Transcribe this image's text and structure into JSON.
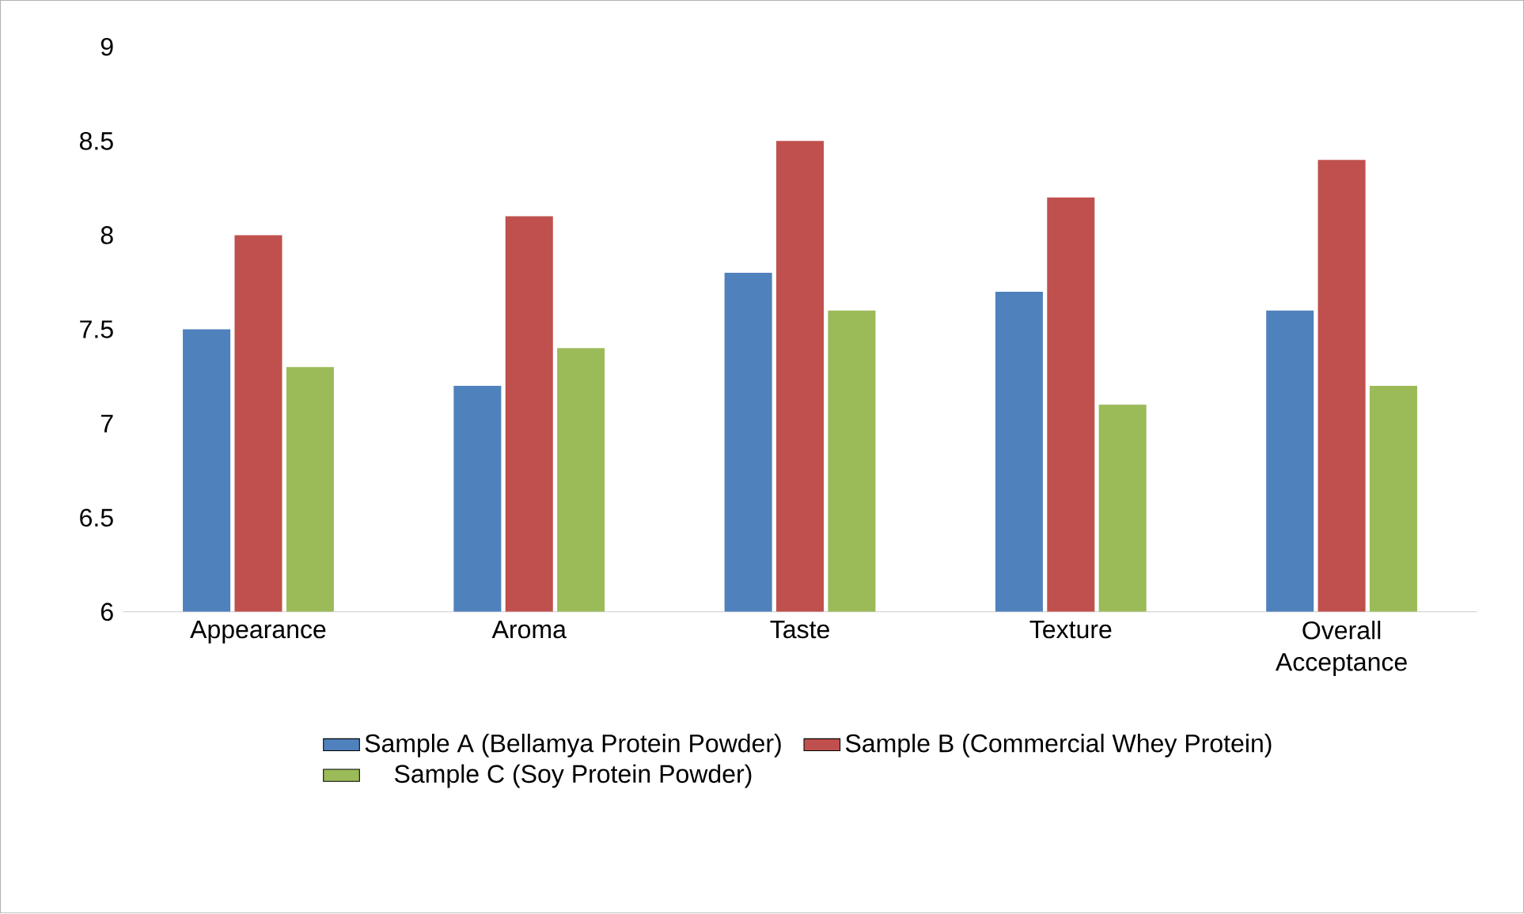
{
  "chart_data": {
    "type": "bar",
    "categories": [
      "Appearance",
      "Aroma",
      "Taste",
      "Texture",
      "Overall Acceptance"
    ],
    "series": [
      {
        "name": "Sample A (Bellamya Protein Powder)",
        "color": "#4f81bd",
        "values": [
          7.5,
          7.2,
          7.8,
          7.7,
          7.6
        ]
      },
      {
        "name": "Sample B (Commercial Whey Protein)",
        "color": "#c0504d",
        "values": [
          8.0,
          8.1,
          8.5,
          8.2,
          8.4
        ]
      },
      {
        "name": "Sample C (Soy Protein Powder)",
        "color": "#9bbb59",
        "values": [
          7.3,
          7.4,
          7.6,
          7.1,
          7.2
        ]
      }
    ],
    "ylim": [
      6,
      9
    ],
    "yticks": [
      6,
      6.5,
      7,
      7.5,
      8,
      8.5,
      9
    ],
    "grid": false,
    "legend": "bottom"
  }
}
